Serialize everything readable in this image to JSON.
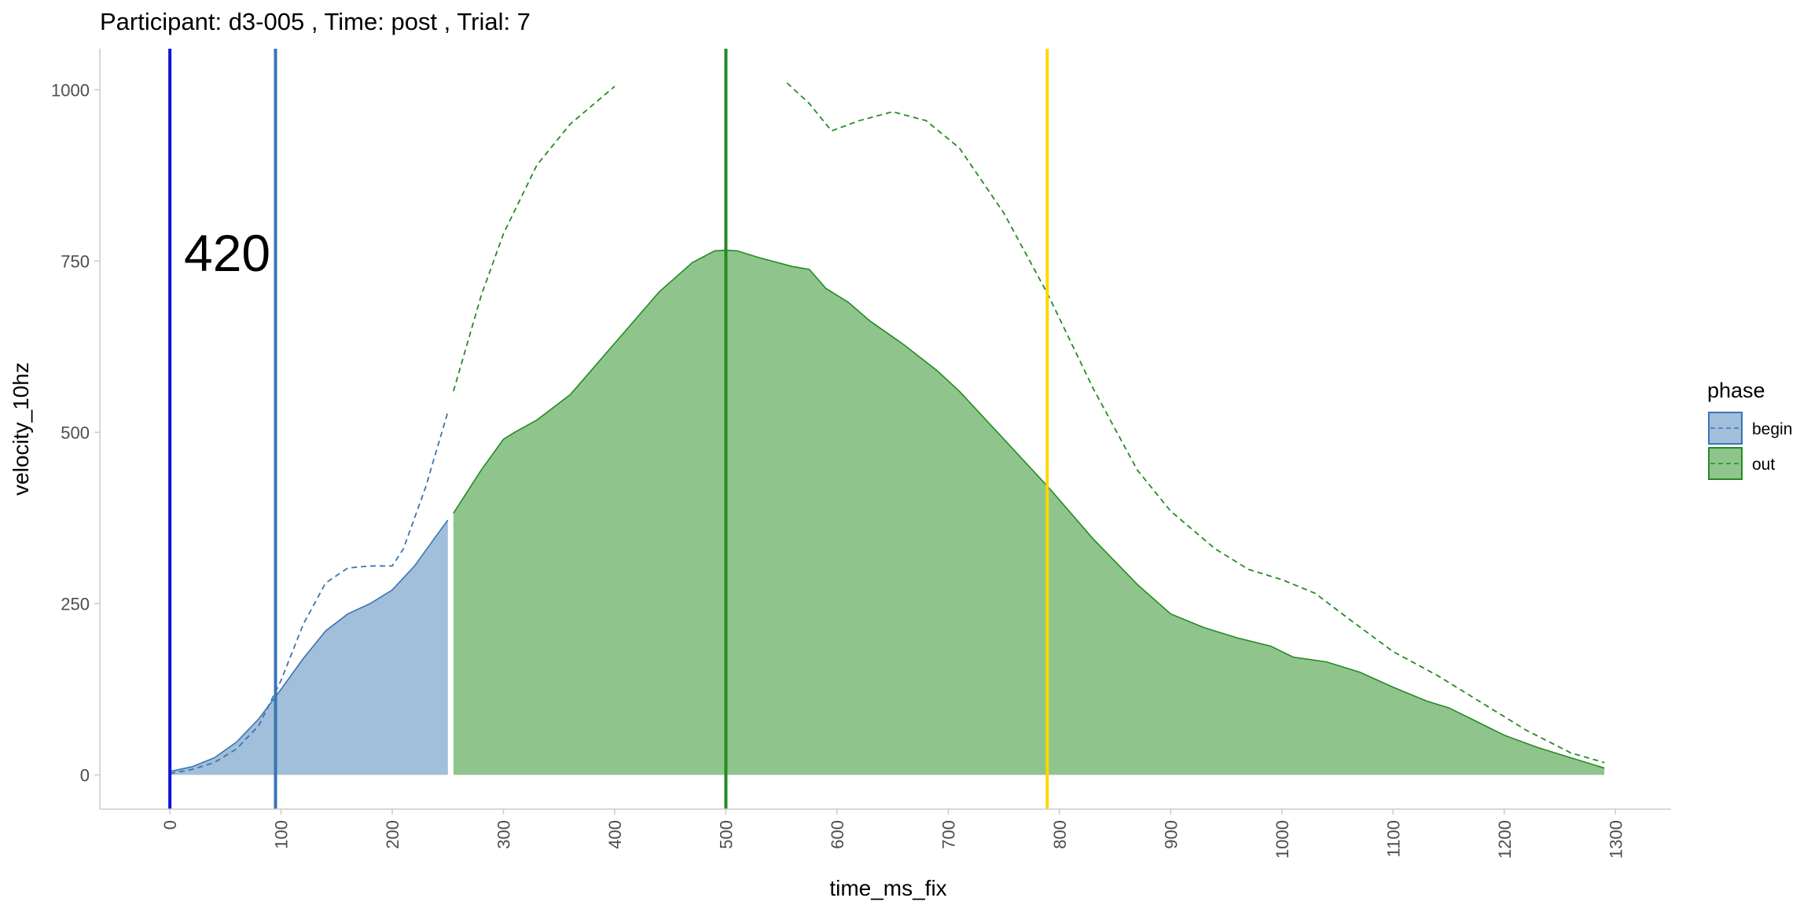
{
  "chart_data": {
    "type": "area",
    "title": "Participant:  d3-005 , Time: post , Trial:  7",
    "xlabel": "time_ms_fix",
    "ylabel": "velocity_10hz",
    "xlim": [
      -63,
      1350
    ],
    "ylim": [
      -50,
      1060
    ],
    "x_ticks": [
      0,
      100,
      200,
      300,
      400,
      500,
      600,
      700,
      800,
      900,
      1000,
      1100,
      1200,
      1300
    ],
    "y_ticks": [
      0,
      250,
      500,
      750,
      1000
    ],
    "x_tick_labels": [
      "0",
      "100",
      "200",
      "300",
      "400",
      "500",
      "600",
      "700",
      "800",
      "900",
      "1000",
      "1100",
      "1200",
      "1300"
    ],
    "y_tick_labels": [
      "0",
      "250",
      "500",
      "750",
      "1000"
    ],
    "grid": false,
    "annotation": "420",
    "legend": {
      "title": "phase",
      "position": "right",
      "entries": [
        {
          "label": "begin",
          "fill": "#a1bfda",
          "line": "#3a74b4"
        },
        {
          "label": "out",
          "fill": "#8fc58c",
          "line": "#238b23"
        }
      ]
    },
    "vertical_lines": [
      {
        "x": 0,
        "color": "#1010e0"
      },
      {
        "x": 95,
        "color": "#3a74b4"
      },
      {
        "x": 500,
        "color": "#228b22"
      },
      {
        "x": 789,
        "color": "#ffd700"
      }
    ],
    "series": [
      {
        "name": "begin",
        "kind": "area",
        "fill": "#a1bfda",
        "stroke": "#3a74b4",
        "x": [
          0,
          20,
          40,
          60,
          80,
          100,
          120,
          140,
          160,
          180,
          200,
          220,
          240,
          250
        ],
        "y": [
          5,
          12,
          25,
          48,
          82,
          125,
          170,
          210,
          235,
          250,
          270,
          305,
          350,
          372
        ]
      },
      {
        "name": "out",
        "kind": "area",
        "fill": "#8fc58c",
        "stroke": "#238b23",
        "x": [
          255,
          280,
          300,
          310,
          330,
          360,
          400,
          440,
          470,
          490,
          500,
          510,
          530,
          560,
          575,
          590,
          610,
          630,
          660,
          690,
          710,
          750,
          790,
          830,
          870,
          900,
          930,
          960,
          990,
          1010,
          1040,
          1070,
          1100,
          1130,
          1150,
          1170,
          1200,
          1230,
          1260,
          1290
        ],
        "y": [
          382,
          445,
          490,
          500,
          518,
          555,
          630,
          705,
          748,
          765,
          766,
          765,
          755,
          742,
          738,
          710,
          690,
          662,
          628,
          590,
          560,
          490,
          420,
          345,
          278,
          235,
          215,
          200,
          188,
          172,
          165,
          150,
          128,
          108,
          98,
          82,
          58,
          40,
          25,
          10
        ]
      },
      {
        "name": "begin",
        "kind": "dashed-line",
        "stroke": "#3a74b4",
        "x": [
          0,
          20,
          40,
          60,
          80,
          100,
          120,
          140,
          160,
          180,
          200,
          210,
          230,
          250
        ],
        "y": [
          2,
          8,
          18,
          38,
          72,
          138,
          220,
          280,
          302,
          305,
          305,
          330,
          420,
          530
        ]
      },
      {
        "name": "out",
        "kind": "dashed-line",
        "stroke": "#238b23",
        "x": [
          255,
          280,
          300,
          330,
          360,
          400
        ],
        "y": [
          560,
          700,
          790,
          890,
          950,
          1005
        ]
      },
      {
        "name": "out",
        "kind": "dashed-line",
        "stroke": "#238b23",
        "x": [
          555,
          575,
          595,
          620,
          650,
          680,
          710,
          750,
          790,
          830,
          870,
          900,
          940,
          970,
          1000,
          1030,
          1060,
          1100,
          1140,
          1180,
          1220,
          1260,
          1290
        ],
        "y": [
          1010,
          980,
          940,
          955,
          968,
          955,
          915,
          820,
          700,
          565,
          445,
          385,
          330,
          300,
          285,
          265,
          228,
          180,
          145,
          105,
          65,
          32,
          18
        ]
      }
    ]
  }
}
